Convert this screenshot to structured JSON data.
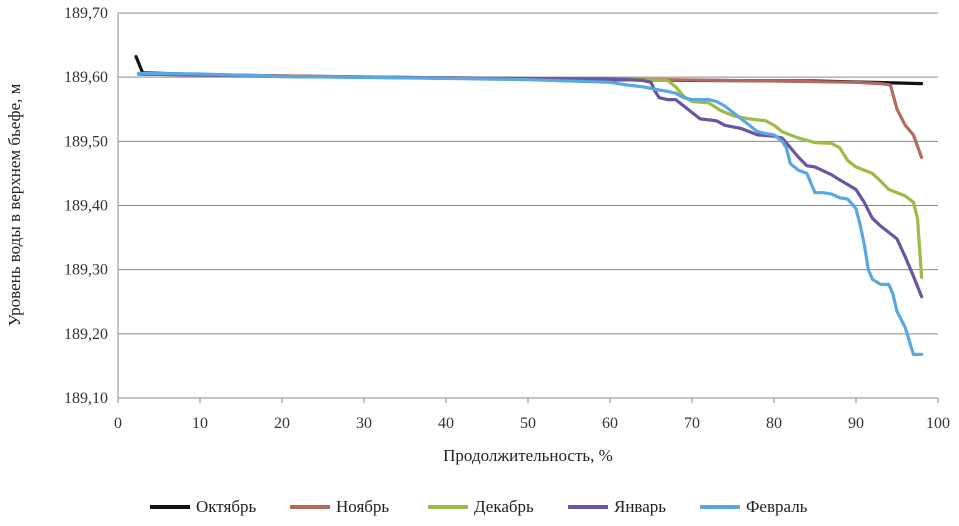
{
  "chart_data": {
    "type": "line",
    "title": "",
    "xlabel": "Продолжительность, %",
    "ylabel": "Уровень воды в верхнем бьефе, м",
    "xlim": [
      0,
      100
    ],
    "ylim": [
      189.1,
      189.7
    ],
    "x_ticks": [
      0,
      10,
      20,
      30,
      40,
      50,
      60,
      70,
      80,
      90,
      100
    ],
    "y_ticks": [
      189.1,
      189.2,
      189.3,
      189.4,
      189.5,
      189.6,
      189.7
    ],
    "x_tick_labels": [
      "0",
      "10",
      "20",
      "30",
      "40",
      "50",
      "60",
      "70",
      "80",
      "90",
      "100"
    ],
    "y_tick_labels": [
      "189,10",
      "189,20",
      "189,30",
      "189,40",
      "189,50",
      "189,60",
      "189,70"
    ],
    "grid": "horizontal",
    "legend": "bottom",
    "series": [
      {
        "name": "Октябрь",
        "color": "#111111",
        "points": [
          [
            2.2,
            189.632
          ],
          [
            3,
            189.607
          ],
          [
            10,
            189.604
          ],
          [
            30,
            189.6
          ],
          [
            50,
            189.597
          ],
          [
            70,
            189.595
          ],
          [
            85,
            189.594
          ],
          [
            92,
            189.592
          ],
          [
            98,
            189.59
          ]
        ]
      },
      {
        "name": "Ноябрь",
        "color": "#b26a5e",
        "points": [
          [
            2.5,
            189.605
          ],
          [
            20,
            189.602
          ],
          [
            40,
            189.599
          ],
          [
            60,
            189.597
          ],
          [
            80,
            189.594
          ],
          [
            90,
            189.592
          ],
          [
            93,
            189.59
          ],
          [
            94.2,
            189.588
          ],
          [
            95,
            189.55
          ],
          [
            96,
            189.525
          ],
          [
            97,
            189.51
          ],
          [
            98,
            189.475
          ]
        ]
      },
      {
        "name": "Декабрь",
        "color": "#9dbb47",
        "points": [
          [
            2.5,
            189.605
          ],
          [
            20,
            189.601
          ],
          [
            40,
            189.599
          ],
          [
            60,
            189.597
          ],
          [
            67,
            189.595
          ],
          [
            68,
            189.585
          ],
          [
            69,
            189.57
          ],
          [
            70,
            189.562
          ],
          [
            72,
            189.56
          ],
          [
            73.5,
            189.548
          ],
          [
            75,
            189.54
          ],
          [
            77,
            189.535
          ],
          [
            79,
            189.532
          ],
          [
            80,
            189.525
          ],
          [
            81,
            189.515
          ],
          [
            83,
            189.505
          ],
          [
            85,
            189.498
          ],
          [
            87,
            189.497
          ],
          [
            88,
            189.49
          ],
          [
            89,
            189.47
          ],
          [
            90,
            189.46
          ],
          [
            92,
            189.45
          ],
          [
            93,
            189.438
          ],
          [
            94,
            189.425
          ],
          [
            96,
            189.415
          ],
          [
            97,
            189.405
          ],
          [
            97.5,
            189.38
          ],
          [
            98,
            189.288
          ]
        ]
      },
      {
        "name": "Январь",
        "color": "#6a55a3",
        "points": [
          [
            2.5,
            189.605
          ],
          [
            20,
            189.601
          ],
          [
            40,
            189.599
          ],
          [
            60,
            189.597
          ],
          [
            64,
            189.595
          ],
          [
            65,
            189.592
          ],
          [
            65.5,
            189.578
          ],
          [
            66,
            189.568
          ],
          [
            67,
            189.565
          ],
          [
            68,
            189.565
          ],
          [
            69,
            189.555
          ],
          [
            70,
            189.545
          ],
          [
            71,
            189.535
          ],
          [
            73,
            189.532
          ],
          [
            74,
            189.525
          ],
          [
            76,
            189.52
          ],
          [
            78,
            189.51
          ],
          [
            80,
            189.508
          ],
          [
            81,
            189.505
          ],
          [
            82,
            189.49
          ],
          [
            83,
            189.475
          ],
          [
            84,
            189.462
          ],
          [
            85,
            189.46
          ],
          [
            87,
            189.448
          ],
          [
            88,
            189.44
          ],
          [
            90,
            189.425
          ],
          [
            91,
            189.405
          ],
          [
            92,
            189.38
          ],
          [
            93,
            189.368
          ],
          [
            95,
            189.348
          ],
          [
            96,
            189.32
          ],
          [
            97,
            189.29
          ],
          [
            98,
            189.258
          ]
        ]
      },
      {
        "name": "Февраль",
        "color": "#5aa8e0",
        "points": [
          [
            2.5,
            189.606
          ],
          [
            10,
            189.605
          ],
          [
            20,
            189.601
          ],
          [
            40,
            189.598
          ],
          [
            50,
            189.596
          ],
          [
            60,
            189.592
          ],
          [
            62,
            189.588
          ],
          [
            64,
            189.585
          ],
          [
            66,
            189.58
          ],
          [
            67,
            189.578
          ],
          [
            68,
            189.575
          ],
          [
            69,
            189.568
          ],
          [
            70,
            189.565
          ],
          [
            71,
            189.565
          ],
          [
            72,
            189.565
          ],
          [
            73,
            189.562
          ],
          [
            74,
            189.555
          ],
          [
            75,
            189.545
          ],
          [
            76,
            189.535
          ],
          [
            77,
            189.525
          ],
          [
            78,
            189.515
          ],
          [
            79,
            189.512
          ],
          [
            80,
            189.51
          ],
          [
            81,
            189.5
          ],
          [
            81.5,
            189.49
          ],
          [
            82,
            189.465
          ],
          [
            83,
            189.455
          ],
          [
            84,
            189.45
          ],
          [
            84.5,
            189.435
          ],
          [
            85,
            189.42
          ],
          [
            86,
            189.42
          ],
          [
            87,
            189.418
          ],
          [
            88,
            189.412
          ],
          [
            89,
            189.41
          ],
          [
            90,
            189.395
          ],
          [
            90.5,
            189.37
          ],
          [
            91,
            189.34
          ],
          [
            91.5,
            189.3
          ],
          [
            92,
            189.285
          ],
          [
            93,
            189.277
          ],
          [
            94,
            189.277
          ],
          [
            94.5,
            189.262
          ],
          [
            95,
            189.235
          ],
          [
            96,
            189.21
          ],
          [
            97,
            189.168
          ],
          [
            98,
            189.168
          ]
        ]
      }
    ]
  }
}
